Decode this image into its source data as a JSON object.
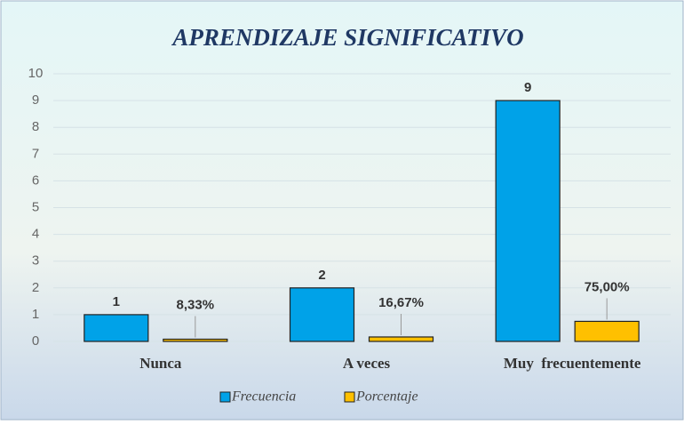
{
  "chart_data": {
    "type": "bar",
    "title": "APRENDIZAJE SIGNIFICATIVO",
    "categories": [
      "Nunca",
      "A veces",
      "Muy  frecuentemente"
    ],
    "series": [
      {
        "name": "Frecuencia",
        "color": "#00a2e8",
        "values": [
          1,
          2,
          9
        ]
      },
      {
        "name": "Porcentaje",
        "color": "#ffc000",
        "values": [
          0.0833,
          0.1667,
          0.75
        ],
        "value_labels": [
          "8,33%",
          "16,67%",
          "75,00%"
        ]
      }
    ],
    "ylim": [
      0,
      10
    ],
    "yticks": [
      0,
      1,
      2,
      3,
      4,
      5,
      6,
      7,
      8,
      9,
      10
    ],
    "grid": true,
    "legend": "bottom"
  }
}
